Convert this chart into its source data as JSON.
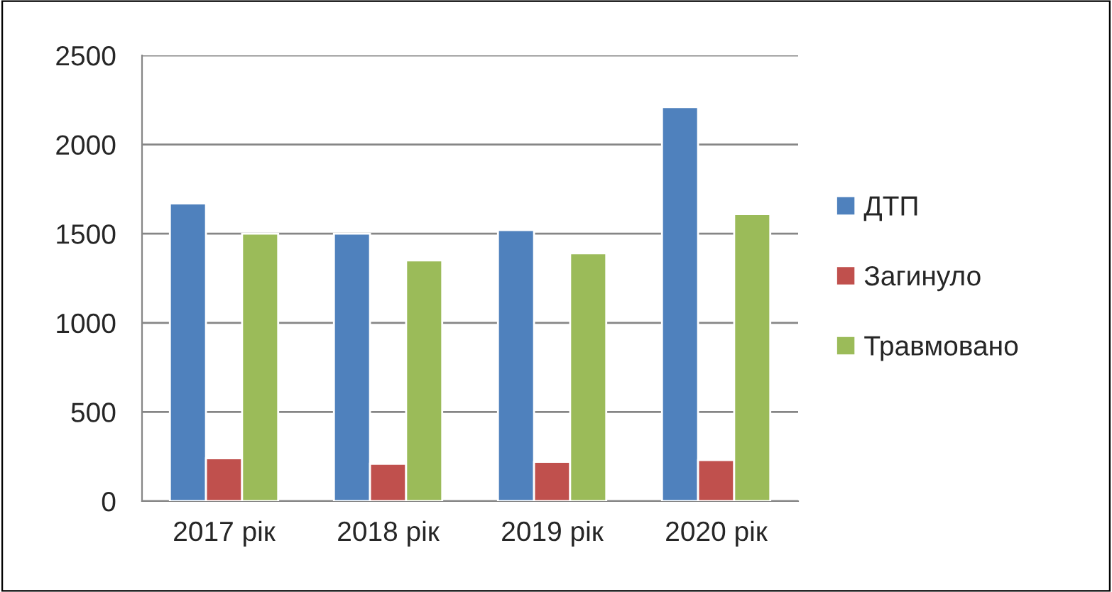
{
  "chart_data": {
    "type": "bar",
    "categories": [
      "2017 рік",
      "2018 рік",
      "2019 рік",
      "2020 рік"
    ],
    "series": [
      {
        "name": "ДТП",
        "color": "#4f81bd",
        "values": [
          1670,
          1500,
          1520,
          2210
        ]
      },
      {
        "name": "Загинуло",
        "color": "#c0504d",
        "values": [
          240,
          210,
          220,
          230
        ]
      },
      {
        "name": "Травмовано",
        "color": "#9bbb59",
        "values": [
          1500,
          1350,
          1390,
          1610
        ]
      }
    ],
    "ylim": [
      0,
      2500
    ],
    "yticks": [
      0,
      500,
      1000,
      1500,
      2000,
      2500
    ],
    "grid": "y",
    "legend": "right"
  }
}
